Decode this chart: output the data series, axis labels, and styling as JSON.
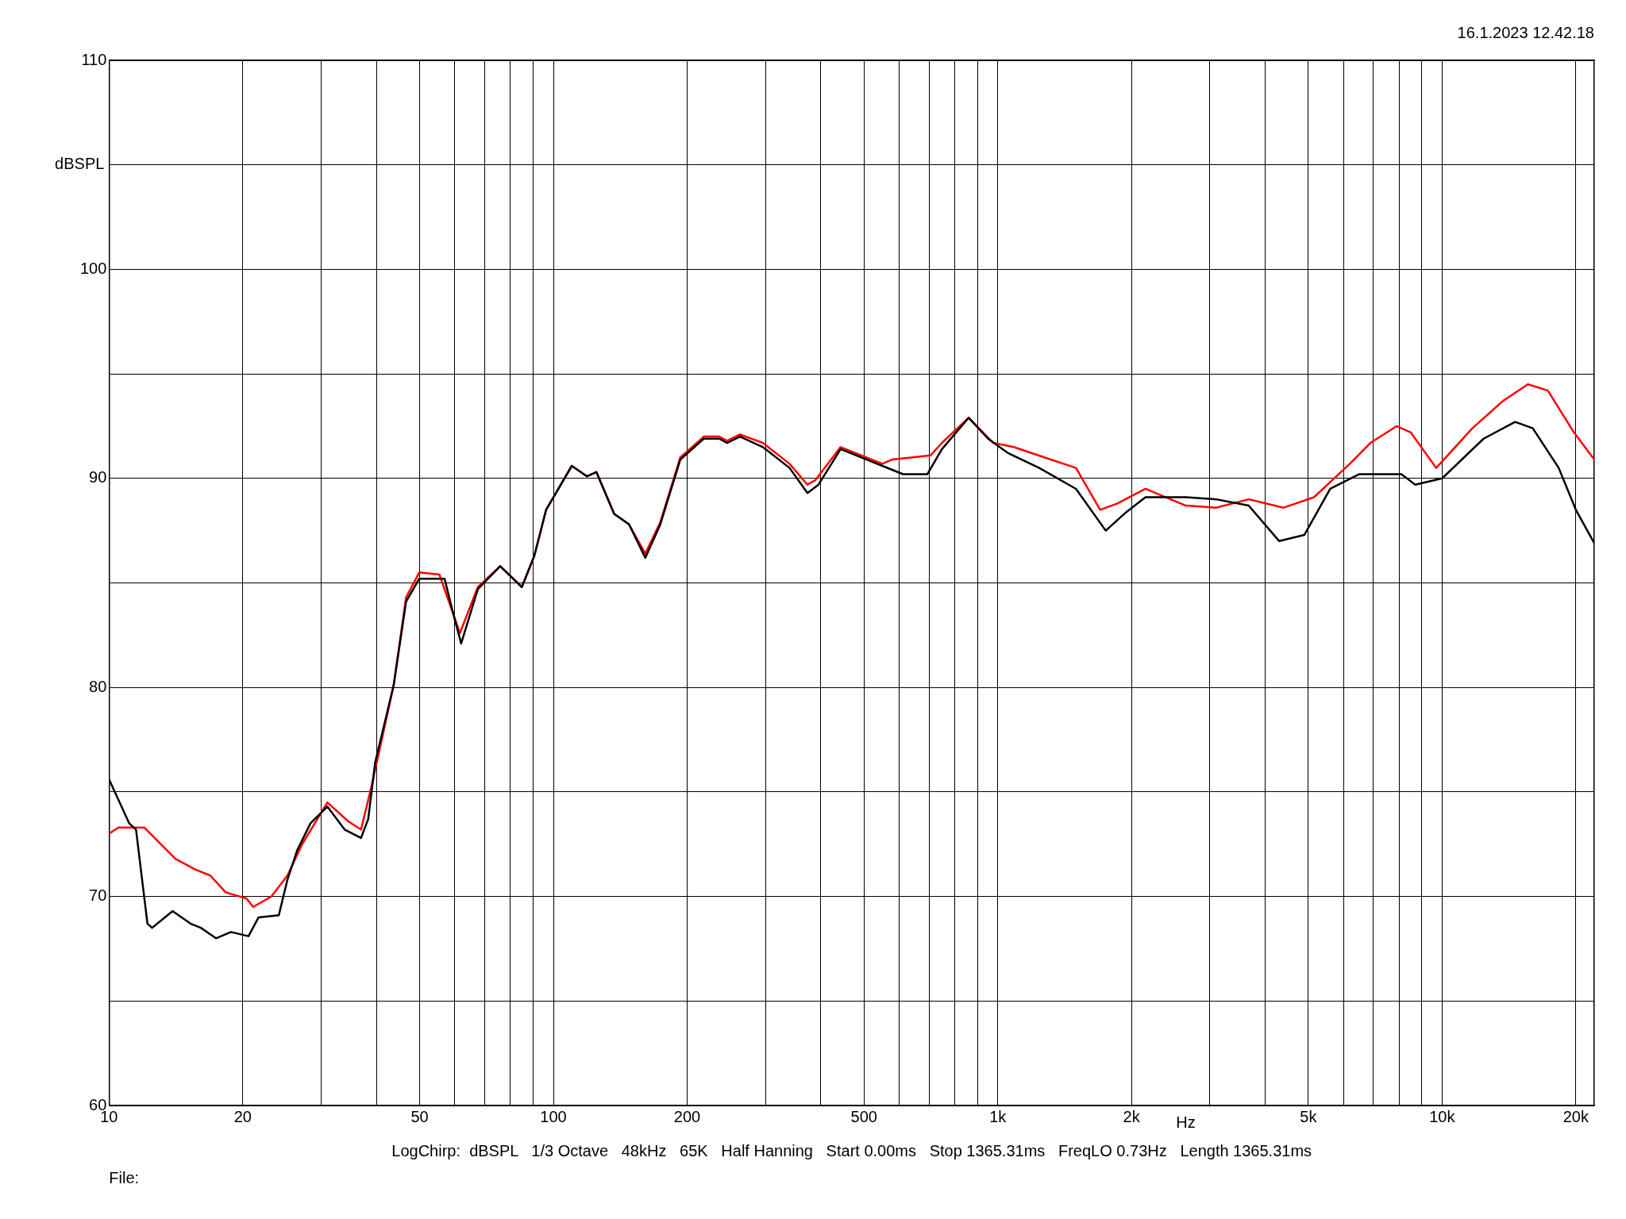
{
  "chart_data": {
    "type": "line",
    "subtitle": "16.1.2023 12.42.18",
    "xlabel": "Hz",
    "ylabel": "dBSPL",
    "log": "x",
    "grid": true,
    "legend": false,
    "marker": "none",
    "line_style": "solid",
    "xlim": [
      10,
      22000
    ],
    "ylim": [
      60,
      110
    ],
    "xticks": [
      10,
      20,
      {
        "value": 30,
        "label": null
      },
      {
        "value": 40,
        "label": null
      },
      50,
      {
        "value": 60,
        "label": null
      },
      {
        "value": 70,
        "label": null
      },
      {
        "value": 80,
        "label": null
      },
      {
        "value": 90,
        "label": null
      },
      100,
      200,
      {
        "value": 300,
        "label": null
      },
      {
        "value": 400,
        "label": null
      },
      500,
      {
        "value": 600,
        "label": null
      },
      {
        "value": 700,
        "label": null
      },
      {
        "value": 800,
        "label": null
      },
      {
        "value": 900,
        "label": null
      },
      {
        "value": 1000,
        "label": "1k"
      },
      {
        "value": 2000,
        "label": "2k"
      },
      {
        "value": 3000,
        "label": null
      },
      {
        "value": 4000,
        "label": null
      },
      {
        "value": 5000,
        "label": "5k"
      },
      {
        "value": 6000,
        "label": null
      },
      {
        "value": 7000,
        "label": null
      },
      {
        "value": 8000,
        "label": null
      },
      {
        "value": 9000,
        "label": null
      },
      {
        "value": 10000,
        "label": "10k"
      },
      {
        "value": 20000,
        "label": "20k"
      }
    ],
    "yticks": [
      60,
      {
        "value": 65,
        "label": null
      },
      70,
      {
        "value": 75,
        "label": null
      },
      80,
      {
        "value": 85,
        "label": null
      },
      90,
      {
        "value": 95,
        "label": null
      },
      100,
      {
        "value": 105,
        "label": null
      },
      110
    ],
    "annotations": [
      "LogChirp:  dBSPL   1/3 Octave   48kHz   65K   Half Hanning   Start 0.00ms   Stop 1365.31ms   FreqLO 0.73Hz   Length 1365.31ms",
      "File:"
    ],
    "series": [
      {
        "color": "#000000",
        "x": [
          10,
          11.1,
          11.5,
          12.2,
          12.5,
          13.9,
          15.25,
          16.1,
          17.4,
          18.8,
          20.6,
          21.7,
          24.1,
          25.2,
          26.5,
          28.4,
          31,
          33.9,
          36.9,
          38.3,
          39.7,
          43.7,
          46.6,
          49.9,
          56.9,
          59.4,
          62,
          67.6,
          75.9,
          84.9,
          90.6,
          96.3,
          110,
          119,
          125,
          137,
          148,
          161,
          174,
          193,
          218,
          236,
          246,
          263,
          296,
          340,
          373,
          395,
          443,
          550,
          612,
          694,
          749,
          860,
          951,
          1057,
          1240,
          1500,
          1750,
          1950,
          2150,
          2650,
          3100,
          3670,
          4300,
          4900,
          5600,
          6500,
          8100,
          8700,
          10000,
          12400,
          14600,
          16000,
          18300,
          20000,
          22000
        ],
        "values": [
          75.6,
          73.5,
          73.2,
          68.7,
          68.5,
          69.3,
          68.7,
          68.5,
          68,
          68.3,
          68.1,
          69,
          69.1,
          70.8,
          72.2,
          73.5,
          74.3,
          73.2,
          72.8,
          73.7,
          76.4,
          80.1,
          84.1,
          85.2,
          85.2,
          83.6,
          82.1,
          84.7,
          85.8,
          84.8,
          86.3,
          88.5,
          90.6,
          90.1,
          90.3,
          88.3,
          87.8,
          86.2,
          87.8,
          90.9,
          91.9,
          91.9,
          91.7,
          92,
          91.5,
          90.5,
          89.3,
          89.7,
          91.4,
          90.6,
          90.2,
          90.2,
          91.4,
          92.9,
          91.9,
          91.2,
          90.5,
          89.5,
          87.5,
          88.4,
          89.1,
          89.1,
          89,
          88.7,
          87,
          87.3,
          89.5,
          90.2,
          90.2,
          89.7,
          90,
          91.9,
          92.7,
          92.4,
          90.5,
          88.5,
          86.9
        ]
      },
      {
        "color": "#ff0000",
        "x": [
          10,
          10.5,
          12,
          14.1,
          15.6,
          16.9,
          18.3,
          20.4,
          21.1,
          23.2,
          25.2,
          27.2,
          31,
          34.5,
          36.9,
          38.9,
          43.7,
          46.6,
          49.9,
          55.4,
          61.6,
          67.6,
          75.9,
          84.9,
          90.6,
          96.3,
          110,
          119,
          125,
          137,
          148,
          161,
          174,
          193,
          218,
          236,
          246,
          263,
          296,
          340,
          373,
          388,
          443,
          550,
          578,
          639,
          706,
          749,
          860,
          977,
          1086,
          1276,
          1500,
          1700,
          1860,
          2150,
          2650,
          3100,
          3670,
          4400,
          5150,
          6200,
          6900,
          7900,
          8500,
          9700,
          11700,
          13700,
          15600,
          17300,
          19800,
          22000
        ],
        "values": [
          73,
          73.3,
          73.3,
          71.8,
          71.3,
          71,
          70.2,
          69.9,
          69.5,
          70,
          71,
          72.5,
          74.5,
          73.6,
          73.2,
          75.2,
          80.1,
          84.3,
          85.5,
          85.4,
          82.6,
          84.8,
          85.8,
          84.8,
          86.3,
          88.5,
          90.6,
          90.1,
          90.3,
          88.3,
          87.8,
          86.4,
          87.9,
          91,
          92,
          92,
          91.8,
          92.1,
          91.7,
          90.7,
          89.7,
          89.9,
          91.5,
          90.7,
          90.9,
          91,
          91.1,
          91.7,
          92.9,
          91.7,
          91.5,
          91,
          90.5,
          88.5,
          88.8,
          89.5,
          88.7,
          88.6,
          89,
          88.6,
          89.1,
          90.7,
          91.7,
          92.5,
          92.2,
          90.5,
          92.4,
          93.7,
          94.5,
          94.2,
          92.2,
          90.9
        ]
      }
    ]
  }
}
